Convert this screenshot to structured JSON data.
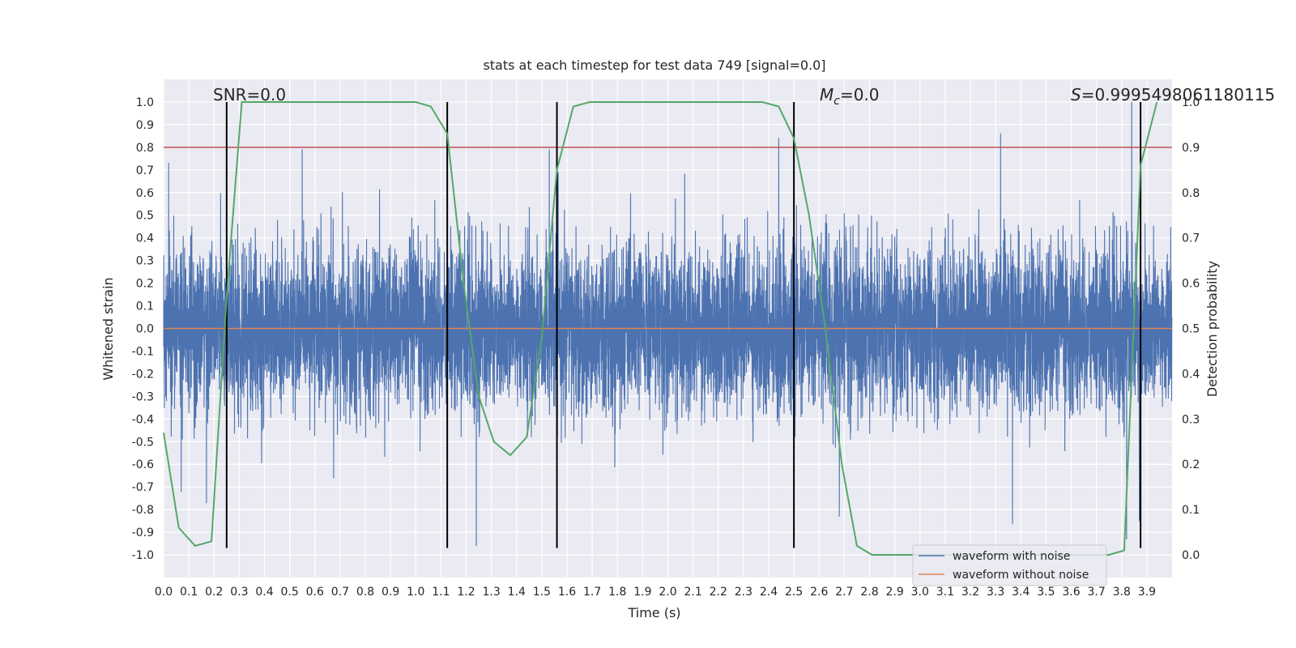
{
  "chart_data": {
    "type": "line",
    "title": "stats at each timestep for test data 749 [signal=0.0]",
    "xlabel": "Time (s)",
    "ylabel": "Whitened strain",
    "y2label": "Detection probability",
    "xlim": [
      0.0,
      4.0
    ],
    "ylim": [
      -1.1,
      1.1
    ],
    "y2lim": [
      -0.05,
      1.05
    ],
    "x_ticks": [
      0.0,
      0.1,
      0.2,
      0.3,
      0.4,
      0.5,
      0.6,
      0.7,
      0.8,
      0.9,
      1.0,
      1.1,
      1.2,
      1.3,
      1.4,
      1.5,
      1.6,
      1.7,
      1.8,
      1.9,
      2.0,
      2.1,
      2.2,
      2.3,
      2.4,
      2.5,
      2.6,
      2.7,
      2.8,
      2.9,
      3.0,
      3.1,
      3.2,
      3.3,
      3.4,
      3.5,
      3.6,
      3.7,
      3.8,
      3.9
    ],
    "x_tick_labels": [
      "0.0",
      "0.1",
      "0.2",
      "0.3",
      "0.4",
      "0.5",
      "0.6",
      "0.7",
      "0.8",
      "0.9",
      "1.0",
      "1.1",
      "1.2",
      "1.3",
      "1.4",
      "1.5",
      "1.6",
      "1.7",
      "1.8",
      "1.9",
      "2.0",
      "2.1",
      "2.2",
      "2.3",
      "2.4",
      "2.5",
      "2.6",
      "2.7",
      "2.8",
      "2.9",
      "3.0",
      "3.1",
      "3.2",
      "3.3",
      "3.4",
      "3.5",
      "3.6",
      "3.7",
      "3.8",
      "3.9"
    ],
    "y_ticks": [
      1.0,
      0.9,
      0.8,
      0.7,
      0.6,
      0.5,
      0.4,
      0.3,
      0.2,
      0.1,
      0.0,
      -0.1,
      -0.2,
      -0.3,
      -0.4,
      -0.5,
      -0.6,
      -0.7,
      -0.8,
      -0.9,
      -1.0
    ],
    "y_tick_labels": [
      "1.0",
      "0.9",
      "0.8",
      "0.7",
      "0.6",
      "0.5",
      "0.4",
      "0.3",
      "0.2",
      "0.1",
      "0.0",
      "-0.1",
      "-0.2",
      "-0.3",
      "-0.4",
      "-0.5",
      "-0.6",
      "-0.7",
      "-0.8",
      "-0.9",
      "-1.0"
    ],
    "y2_ticks": [
      1.0,
      0.9,
      0.8,
      0.7,
      0.6,
      0.5,
      0.4,
      0.3,
      0.2,
      0.1,
      0.0
    ],
    "y2_tick_labels": [
      "1.0",
      "0.9",
      "0.8",
      "0.7",
      "0.6",
      "0.5",
      "0.4",
      "0.3",
      "0.2",
      "0.1",
      "0.0"
    ],
    "grid": true,
    "legend_placement": "lower-right",
    "series": [
      {
        "name": "waveform with noise",
        "color": "#4c72b0",
        "axis": "left",
        "description_type": "noise",
        "sample_rate_hz": 2048,
        "noise_std": 0.18,
        "peaks": [
          {
            "x": 0.02,
            "y": 0.73
          },
          {
            "x": 0.07,
            "y": -0.72
          },
          {
            "x": 0.17,
            "y": -0.77
          },
          {
            "x": 0.55,
            "y": 0.79
          },
          {
            "x": 1.24,
            "y": -0.96
          },
          {
            "x": 1.53,
            "y": 0.79
          },
          {
            "x": 2.44,
            "y": 0.84
          },
          {
            "x": 2.68,
            "y": -0.83
          },
          {
            "x": 3.32,
            "y": 0.86
          },
          {
            "x": 3.82,
            "y": -0.93
          },
          {
            "x": 3.84,
            "y": 1.0
          },
          {
            "x": 3.87,
            "y": -0.85
          }
        ]
      },
      {
        "name": "waveform without noise",
        "color": "#dd8452",
        "axis": "left",
        "x": [
          0.0,
          4.0
        ],
        "y": [
          0.0,
          0.0
        ]
      },
      {
        "name": "",
        "color": "#55a868",
        "axis": "right",
        "x": [
          0.0,
          0.06,
          0.125,
          0.19,
          0.25,
          0.31,
          0.375,
          0.5,
          0.625,
          0.75,
          0.875,
          1.0,
          1.06,
          1.125,
          1.19,
          1.25,
          1.31,
          1.375,
          1.44,
          1.5,
          1.56,
          1.625,
          1.69,
          1.75,
          1.875,
          2.0,
          2.125,
          2.25,
          2.375,
          2.44,
          2.5,
          2.56,
          2.625,
          2.69,
          2.75,
          2.81,
          2.875,
          3.0,
          3.125,
          3.25,
          3.375,
          3.5,
          3.625,
          3.75,
          3.81,
          3.875,
          3.94
        ],
        "y": [
          0.27,
          0.06,
          0.02,
          0.03,
          0.57,
          1.0,
          1.0,
          1.0,
          1.0,
          1.0,
          1.0,
          1.0,
          0.99,
          0.93,
          0.6,
          0.35,
          0.25,
          0.22,
          0.26,
          0.48,
          0.85,
          0.99,
          1.0,
          1.0,
          1.0,
          1.0,
          1.0,
          1.0,
          1.0,
          0.99,
          0.92,
          0.75,
          0.5,
          0.2,
          0.02,
          0.0,
          0.0,
          0.0,
          0.0,
          0.0,
          0.0,
          0.0,
          0.0,
          0.0,
          0.01,
          0.86,
          1.0
        ]
      }
    ],
    "threshold_line": {
      "axis": "right",
      "y": 0.9,
      "color": "#c44e52"
    },
    "vlines": [
      0.25,
      1.125,
      1.56,
      2.5,
      3.875
    ],
    "vline_color": "#000000",
    "vline_y_range": [
      -0.97,
      1.0
    ],
    "annotations": {
      "snr": "SNR=0.0",
      "mc_symbol": "M",
      "mc_sub": "c",
      "mc_value": "=0.0",
      "s_symbol": "S",
      "s_value": "=0.9995498061180115"
    },
    "legend": [
      "waveform with noise",
      "waveform without noise"
    ],
    "colors": {
      "plot_bg": "#eaeaf2",
      "grid": "#ffffff",
      "text": "#262626"
    }
  }
}
